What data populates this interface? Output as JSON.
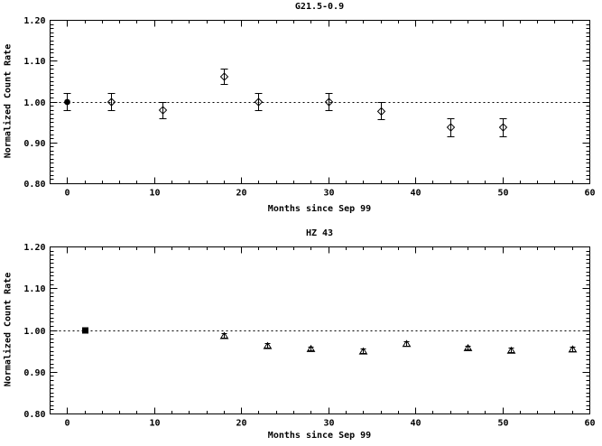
{
  "page": {
    "background_color": "#ffffff",
    "foreground_color": "#000000"
  },
  "chart_data": [
    {
      "type": "scatter",
      "title": "G21.5-0.9",
      "xlabel": "Months since Sep 99",
      "ylabel": "Normalized Count Rate",
      "xlim": [
        -2,
        60
      ],
      "ylim": [
        0.8,
        1.2
      ],
      "xticks": [
        0,
        10,
        20,
        30,
        40,
        50,
        60
      ],
      "xtick_labels": [
        "0",
        "10",
        "20",
        "30",
        "40",
        "50",
        "60"
      ],
      "yticks": [
        0.8,
        0.9,
        1.0,
        1.1,
        1.2
      ],
      "ytick_labels": [
        "0.80",
        "0.90",
        "1.00",
        "1.10",
        "1.20"
      ],
      "x_minor_step": 2,
      "y_minor_step": 0.01,
      "grid": false,
      "legend": "none",
      "reference_line_y": 1.0,
      "reference_line_style": "dotted",
      "series": [
        {
          "name": "G21.5-0.9 normalized count rate",
          "x": [
            0,
            5,
            11,
            18,
            22,
            30,
            36,
            44,
            50
          ],
          "y": [
            1.0,
            1.0,
            0.98,
            1.062,
            1.0,
            1.0,
            0.977,
            0.938,
            0.938
          ],
          "yerr": [
            0.02,
            0.02,
            0.02,
            0.018,
            0.02,
            0.02,
            0.021,
            0.022,
            0.022
          ],
          "markers": [
            "filled-circle",
            "open-diamond",
            "open-diamond",
            "open-diamond",
            "open-diamond",
            "open-diamond",
            "open-diamond",
            "open-diamond",
            "open-diamond"
          ],
          "cap_width": 8
        }
      ]
    },
    {
      "type": "scatter",
      "title": "HZ 43",
      "xlabel": "Months since Sep 99",
      "ylabel": "Normalized Count Rate",
      "xlim": [
        -2,
        60
      ],
      "ylim": [
        0.8,
        1.2
      ],
      "xticks": [
        0,
        10,
        20,
        30,
        40,
        50,
        60
      ],
      "xtick_labels": [
        "0",
        "10",
        "20",
        "30",
        "40",
        "50",
        "60"
      ],
      "yticks": [
        0.8,
        0.9,
        1.0,
        1.1,
        1.2
      ],
      "ytick_labels": [
        "0.80",
        "0.90",
        "1.00",
        "1.10",
        "1.20"
      ],
      "x_minor_step": 2,
      "y_minor_step": 0.01,
      "grid": false,
      "legend": "none",
      "reference_line_y": 1.0,
      "reference_line_style": "dotted",
      "series": [
        {
          "name": "HZ 43 normalized count rate",
          "x": [
            2,
            18,
            23,
            28,
            34,
            39,
            46,
            51,
            58
          ],
          "y": [
            1.0,
            0.987,
            0.963,
            0.956,
            0.95,
            0.968,
            0.958,
            0.952,
            0.955
          ],
          "yerr": [
            0.003,
            0.006,
            0.005,
            0.005,
            0.005,
            0.005,
            0.005,
            0.005,
            0.005
          ],
          "markers": [
            "filled-square",
            "open-triangle",
            "open-triangle",
            "open-triangle",
            "open-triangle",
            "open-triangle",
            "open-triangle",
            "open-triangle",
            "open-triangle"
          ],
          "cap_width": 6
        }
      ]
    }
  ]
}
